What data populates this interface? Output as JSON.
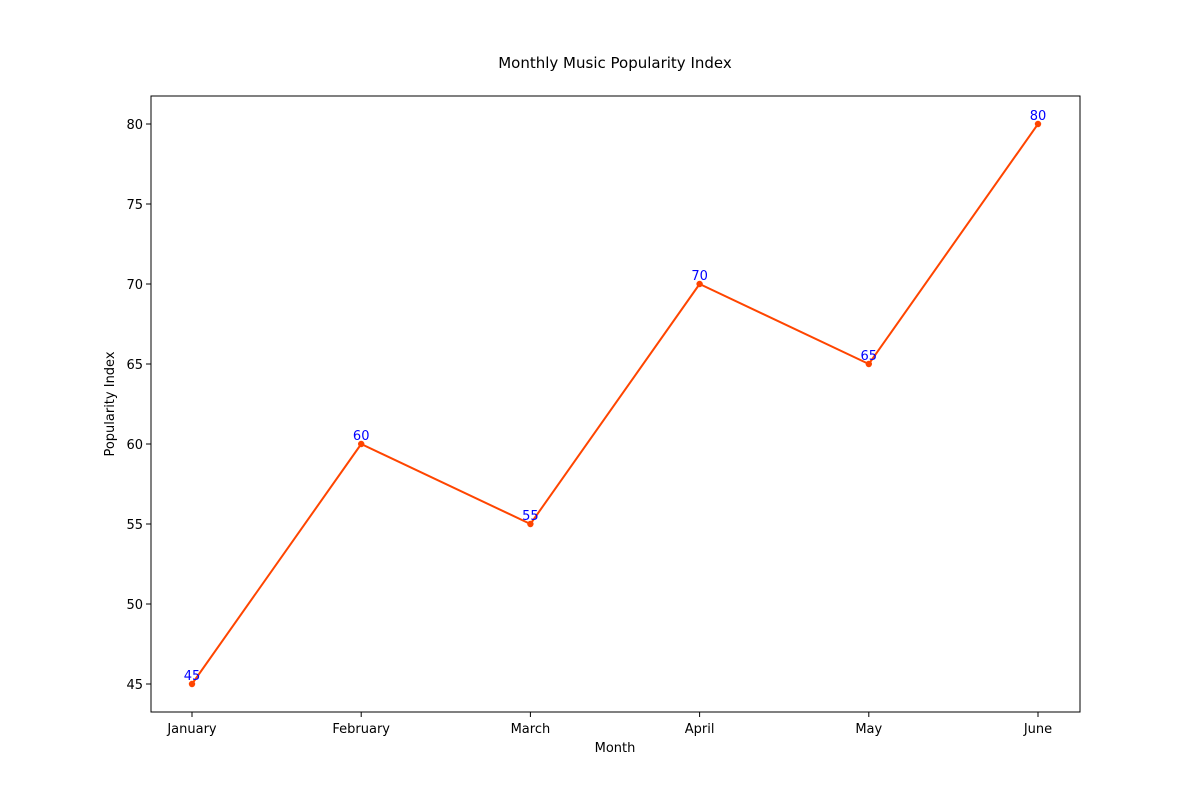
{
  "chart_data": {
    "type": "line",
    "title": "Monthly Music Popularity Index",
    "xlabel": "Month",
    "ylabel": "Popularity Index",
    "categories": [
      "January",
      "February",
      "March",
      "April",
      "May",
      "June"
    ],
    "series": [
      {
        "values": [
          45,
          60,
          55,
          70,
          65,
          80
        ]
      }
    ],
    "ylim": [
      43.25,
      81.75
    ],
    "yticks": [
      45,
      50,
      55,
      60,
      65,
      70,
      75,
      80
    ],
    "grid": false,
    "legend": "none",
    "line_color": "#ff4500",
    "marker_color": "#ff4500",
    "data_label_color": "#0000ff",
    "show_data_labels": true
  }
}
